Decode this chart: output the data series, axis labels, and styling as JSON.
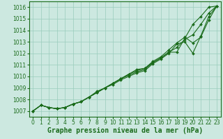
{
  "xlabel": "Graphe pression niveau de la mer (hPa)",
  "ylim": [
    1006.5,
    1016.5
  ],
  "xlim": [
    -0.5,
    23.5
  ],
  "yticks": [
    1007,
    1008,
    1009,
    1010,
    1011,
    1012,
    1013,
    1014,
    1015,
    1016
  ],
  "xticks": [
    0,
    1,
    2,
    3,
    4,
    5,
    6,
    7,
    8,
    9,
    10,
    11,
    12,
    13,
    14,
    15,
    16,
    17,
    18,
    19,
    20,
    21,
    22,
    23
  ],
  "bg_color": "#cce8e0",
  "grid_color": "#99ccbb",
  "line_color": "#1a6b1a",
  "lines": [
    [
      1007.0,
      1007.5,
      1007.3,
      1007.2,
      1007.3,
      1007.6,
      1007.8,
      1008.2,
      1008.6,
      1009.0,
      1009.3,
      1009.7,
      1010.0,
      1010.3,
      1010.5,
      1011.1,
      1011.5,
      1012.0,
      1012.8,
      1013.0,
      1012.0,
      1013.5,
      1015.2,
      1016.1
    ],
    [
      1007.0,
      1007.5,
      1007.3,
      1007.2,
      1007.3,
      1007.6,
      1007.8,
      1008.2,
      1008.6,
      1009.0,
      1009.4,
      1009.8,
      1010.1,
      1010.4,
      1010.6,
      1011.2,
      1011.6,
      1012.1,
      1012.5,
      1013.2,
      1013.6,
      1014.5,
      1015.5,
      1016.1
    ],
    [
      1007.0,
      1007.5,
      1007.3,
      1007.2,
      1007.3,
      1007.6,
      1007.8,
      1008.2,
      1008.6,
      1009.0,
      1009.4,
      1009.8,
      1010.2,
      1010.5,
      1010.7,
      1011.2,
      1011.6,
      1012.1,
      1012.1,
      1013.3,
      1014.5,
      1015.2,
      1016.0,
      1016.1
    ],
    [
      1007.0,
      1007.5,
      1007.3,
      1007.2,
      1007.3,
      1007.6,
      1007.8,
      1008.2,
      1008.7,
      1009.0,
      1009.4,
      1009.8,
      1010.2,
      1010.6,
      1010.7,
      1011.3,
      1011.7,
      1012.3,
      1012.9,
      1013.4,
      1012.9,
      1013.4,
      1014.9,
      1016.1
    ]
  ],
  "marker": "D",
  "markersize": 2.0,
  "linewidth": 0.8,
  "xlabel_fontsize": 7.0,
  "tick_fontsize": 5.5
}
